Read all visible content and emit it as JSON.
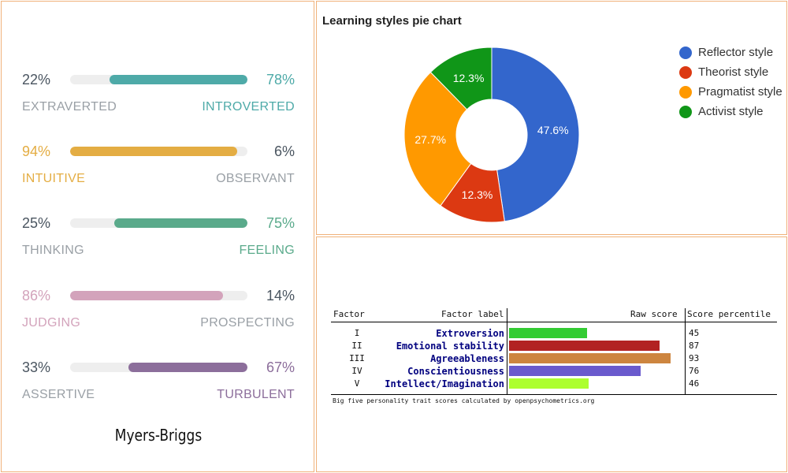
{
  "myers_briggs": {
    "caption": "Myers-Briggs",
    "traits": [
      {
        "left_pct": "22%",
        "right_pct": "78%",
        "left_label": "EXTRAVERTED",
        "right_label": "INTROVERTED",
        "dominant": "right",
        "value": 78,
        "color": "#4eaaa8"
      },
      {
        "left_pct": "94%",
        "right_pct": "6%",
        "left_label": "INTUITIVE",
        "right_label": "OBSERVANT",
        "dominant": "left",
        "value": 94,
        "color": "#e4ad43"
      },
      {
        "left_pct": "25%",
        "right_pct": "75%",
        "left_label": "THINKING",
        "right_label": "FEELING",
        "dominant": "right",
        "value": 75,
        "color": "#5aaa8b"
      },
      {
        "left_pct": "86%",
        "right_pct": "14%",
        "left_label": "JUDGING",
        "right_label": "PROSPECTING",
        "dominant": "left",
        "value": 86,
        "color": "#d3a3bb"
      },
      {
        "left_pct": "33%",
        "right_pct": "67%",
        "left_label": "ASSERTIVE",
        "right_label": "TURBULENT",
        "dominant": "right",
        "value": 67,
        "color": "#8c6e9b"
      }
    ]
  },
  "chart_data": [
    {
      "type": "pie",
      "title": "Learning styles pie chart",
      "legend_position": "right",
      "slices": [
        {
          "label": "Reflector style",
          "value": 47.6,
          "display": "47.6%",
          "color": "#3366cc"
        },
        {
          "label": "Theorist style",
          "value": 12.3,
          "display": "12.3%",
          "color": "#dc3912"
        },
        {
          "label": "Pragmatist style",
          "value": 27.7,
          "display": "27.7%",
          "color": "#ff9900"
        },
        {
          "label": "Activist style",
          "value": 12.3,
          "display": "12.3%",
          "color": "#109618"
        }
      ]
    },
    {
      "type": "bar",
      "orientation": "horizontal",
      "headers": {
        "factor": "Factor",
        "label": "Factor label",
        "raw": "Raw score",
        "percentile": "Score percentile"
      },
      "caption": "Big five personality trait scores calculated by openpsychometrics.org",
      "rows": [
        {
          "factor": "I",
          "label": "Extroversion",
          "percentile": 45,
          "color": "#33cc33"
        },
        {
          "factor": "II",
          "label": "Emotional stability",
          "percentile": 87,
          "color": "#b22222"
        },
        {
          "factor": "III",
          "label": "Agreeableness",
          "percentile": 93,
          "color": "#cd853f"
        },
        {
          "factor": "IV",
          "label": "Conscientiousness",
          "percentile": 76,
          "color": "#6a5acd"
        },
        {
          "factor": "V",
          "label": "Intellect/Imagination",
          "percentile": 46,
          "color": "#adff2f"
        }
      ]
    }
  ]
}
